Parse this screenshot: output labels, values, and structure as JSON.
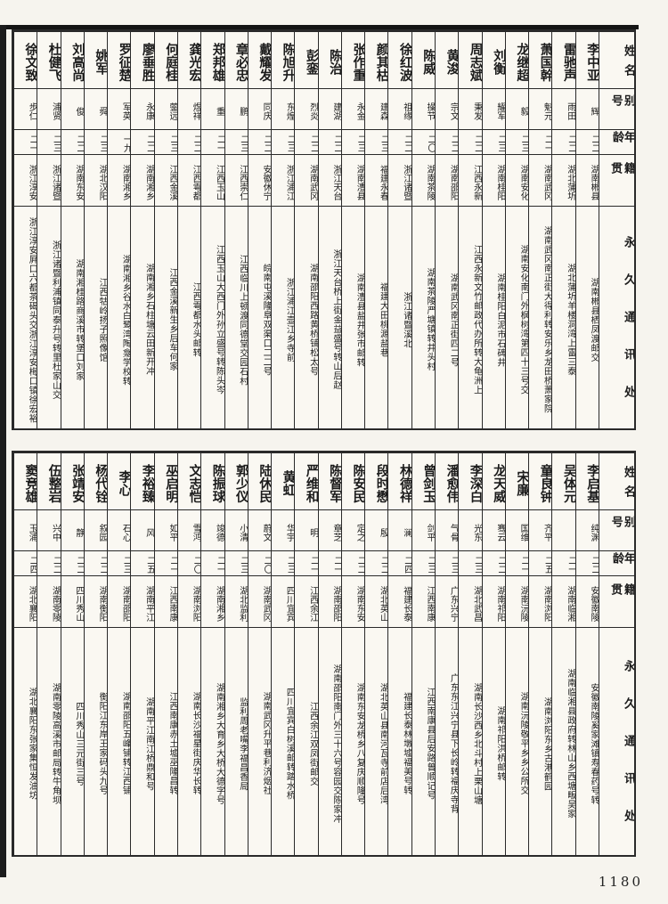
{
  "page_number": "1180",
  "row_labels": {
    "name": "姓名",
    "alias": "别号",
    "age": "年龄",
    "native": "籍贯",
    "address": "永久通讯处"
  },
  "reading_order": "right-to-left",
  "tables": [
    {
      "entries": [
        {
          "name": "李中亚",
          "alias": "辉",
          "age": "二二",
          "native": "湖南郴县",
          "address": "湖南郴县栖凤渡邮交"
        },
        {
          "name": "雷驰声",
          "alias": "雨田",
          "age": "二二",
          "native": "湖北蒲圻",
          "address": "湖北蒲圻羊楼洞湾上雷三泰"
        },
        {
          "name": "萧国幹",
          "alias": "魁元",
          "age": "二一",
          "native": "湖南武冈",
          "address": "湖南武冈南正街大得利转安乐乡龙田桥萧家院"
        },
        {
          "name": "龙继超",
          "alias": "毅",
          "age": "二三",
          "native": "湖南安化",
          "address": "湖南安化南门外枫树湾第四十三号交"
        },
        {
          "name": "刘衡",
          "alias": "耀军",
          "age": "二三",
          "native": "湖南桂阳",
          "address": "湖南桂阳白泥市石碑井"
        },
        {
          "name": "周志斌",
          "alias": "秉发",
          "age": "二二",
          "native": "江西永新",
          "address": "江西永新文竹邮政代办所转大龟洲上"
        },
        {
          "name": "黄浚",
          "alias": "宗文",
          "age": "二二",
          "native": "湖南邵阳",
          "address": "湖南武冈南正街四二号"
        },
        {
          "name": "陈威",
          "alias": "操节",
          "age": "二〇",
          "native": "湖南茶陵",
          "address": "湖南茶陵严塘镇转井头村"
        },
        {
          "name": "徐红波",
          "alias": "祖缘",
          "age": "二二",
          "native": "浙江诸暨",
          "address": "浙江诸暨溪北"
        },
        {
          "name": "颜其枯",
          "alias": "建森",
          "age": "二三",
          "native": "福建永春",
          "address": "福建大田桃源盐巷"
        },
        {
          "name": "张作重",
          "alias": "永金",
          "age": "二三",
          "native": "湖南澧县",
          "address": "湖南澧县盐井张市邮转"
        },
        {
          "name": "陈治",
          "alias": "建湖",
          "age": "二二",
          "native": "浙江天台",
          "address": "浙江天台桥上街金益盛号转山后赵"
        },
        {
          "name": "彭銮",
          "alias": "烈炎",
          "age": "二二",
          "native": "湖南武冈",
          "address": "湖南邵阳西路黄桥铺松太号"
        },
        {
          "name": "陈旭升",
          "alias": "东煌",
          "age": "二三",
          "native": "浙江浦江",
          "address": "浙江浦江壶江乡寺前"
        },
        {
          "name": "戴耀发",
          "alias": "同庆",
          "age": "二二",
          "native": "安徽休宁",
          "address": "皖南屯溪隆阜双渠口二二号"
        },
        {
          "name": "章必忠",
          "alias": "鹏",
          "age": "二三",
          "native": "江西崇仁",
          "address": "江西临川上顿渡同德堂交园石村"
        },
        {
          "name": "郑邦雄",
          "alias": "重",
          "age": "二一",
          "native": "江西玉山",
          "address": "江西玉山大西门外孙立盛号转陈头岑"
        },
        {
          "name": "龚光宏",
          "alias": "煜祥",
          "age": "二二",
          "native": "江西雩都",
          "address": "江西雩都水头邮转"
        },
        {
          "name": "何庭桂",
          "alias": "蓥远",
          "age": "二三",
          "native": "江西金溪",
          "address": "江西金溪新生乡后车何家"
        },
        {
          "name": "廖垂胜",
          "alias": "永康",
          "age": "二二",
          "native": "湖南湘乡",
          "address": "湖南湘乡石柱塘云田新开冲"
        },
        {
          "name": "罗征楚",
          "alias": "军英",
          "age": "一九",
          "native": "湖南湘乡",
          "address": "湖南湘乡谷水白鹭湾陶龛学校转"
        },
        {
          "name": "姚军",
          "alias": "舜",
          "age": "二三",
          "native": "湖北汉阳",
          "address": "江西牯岭扬子照像馆"
        },
        {
          "name": "刘高尚",
          "alias": "俊",
          "age": "二二",
          "native": "湖南东安",
          "address": "湖南湘桂路商溪市转堡口刘家"
        },
        {
          "name": "杜健飞",
          "alias": "浦贤",
          "age": "二三",
          "native": "浙江诸暨",
          "address": "浙江诸暨利浦镇同泰升号转里杜家山交"
        },
        {
          "name": "徐文致",
          "alias": "步仁",
          "age": "二一",
          "native": "浙江淳安",
          "address": "浙江淳安屛口六都茶碣头交浙江淳安梅口镇徐宏裕"
        }
      ]
    },
    {
      "entries": [
        {
          "name": "李启基",
          "alias": "纯渊",
          "age": "二二",
          "native": "安徽南陵",
          "address": "安徽南陵奚家滩镇寿春药号转"
        },
        {
          "name": "吴体元",
          "alias": "",
          "age": "二一",
          "native": "湖南临湘",
          "address": "湖南临湘县政府转林山乡西塘畈吴家"
        },
        {
          "name": "童良钟",
          "alias": "齐平",
          "age": "二五",
          "native": "湖南浏阳",
          "address": "湖南浏阳东乡古港鹤园"
        },
        {
          "name": "宋廉",
          "alias": "国维",
          "age": "二一",
          "native": "湖南沅陵",
          "address": "湖南沅陵敬平乡乡公所交"
        },
        {
          "name": "龙天威",
          "alias": "骞云",
          "age": "二二",
          "native": "湖南祁阳",
          "address": "湖南祁阳洪桥邮转"
        },
        {
          "name": "李深白",
          "alias": "光东",
          "age": "二三",
          "native": "湖北武昌",
          "address": "湖南长沙西乡北斗村上栗山塘"
        },
        {
          "name": "潘愈伟",
          "alias": "气骨",
          "age": "二三",
          "native": "广东兴宁",
          "address": "广东东江兴宁县下长岭转福庆寺背"
        },
        {
          "name": "曾剑玉",
          "alias": "剑平",
          "age": "二三",
          "native": "江西南康",
          "address": "江西南康县后安路曾顺记号"
        },
        {
          "name": "林德祥",
          "alias": "澜",
          "age": "二四",
          "native": "福建长泰",
          "address": "福建长泰林墩墟福美号转"
        },
        {
          "name": "段时懋",
          "alias": "殷",
          "age": "二二",
          "native": "湖北英山",
          "address": "湖北英山县南河瓦寺前店后湾"
        },
        {
          "name": "陈安民",
          "alias": "定之",
          "age": "二二",
          "native": "湖南东安",
          "address": "湖南东安龙桥乡八复庆顺隆号"
        },
        {
          "name": "陈督军",
          "alias": "章芝",
          "age": "二一",
          "native": "湖南邵阳",
          "address": "湖南邵阳南门外三十六号容园交陈家冲"
        },
        {
          "name": "严维和",
          "alias": "明",
          "age": "二一",
          "native": "江西余江",
          "address": "江西余江双凤街邮交"
        },
        {
          "name": "黄虹",
          "alias": "华宇",
          "age": "二三",
          "native": "四川宜宾",
          "address": "四川宜宾白树溪邮转踏水桥"
        },
        {
          "name": "陆休民",
          "alias": "蔚文",
          "age": "二〇",
          "native": "湖南武冈",
          "address": "湖南武冈升平巷利济烟社"
        },
        {
          "name": "郭少仪",
          "alias": "小清",
          "age": "二三",
          "native": "湖北监利",
          "address": "监利周老嘴李福昌香局"
        },
        {
          "name": "陈振球",
          "alias": "竣德",
          "age": "二一",
          "native": "湖南湘乡",
          "address": "湖南湘乡大育乡大桥大德字号"
        },
        {
          "name": "文志恺",
          "alias": "雪鸿",
          "age": "二〇",
          "native": "湖南浏阳",
          "address": "湖南长沙福星街庆华长转"
        },
        {
          "name": "巫启明",
          "alias": "如平",
          "age": "二一",
          "native": "江西南康",
          "address": "江西南康赤土墟巫隆昌转"
        },
        {
          "name": "李裕臻",
          "alias": "风",
          "age": "二五",
          "native": "湖南平江",
          "address": "湖南平江南江桥鼎和号"
        },
        {
          "name": "李心",
          "alias": "石心",
          "age": "二三",
          "native": "湖南邵阳",
          "address": "湖南邵阳五峰铺转江西铺"
        },
        {
          "name": "杨代铨",
          "alias": "叙园",
          "age": "二二",
          "native": "湖南衡阳",
          "address": "衡阳江东岸王家码头九号"
        },
        {
          "name": "张靖安",
          "alias": "静",
          "age": "二二",
          "native": "四川秀山",
          "address": "四川秀山三元街三号"
        },
        {
          "name": "伍整岩",
          "alias": "兴中",
          "age": "二二",
          "native": "湖南零陵",
          "address": "湖南零陵高溪市邮局转牛角坝"
        },
        {
          "name": "窦竞雄",
          "alias": "玉浦",
          "age": "二四",
          "native": "湖北襄阳",
          "address": "湖北襄阳东张家集恒发油坊"
        }
      ]
    }
  ]
}
